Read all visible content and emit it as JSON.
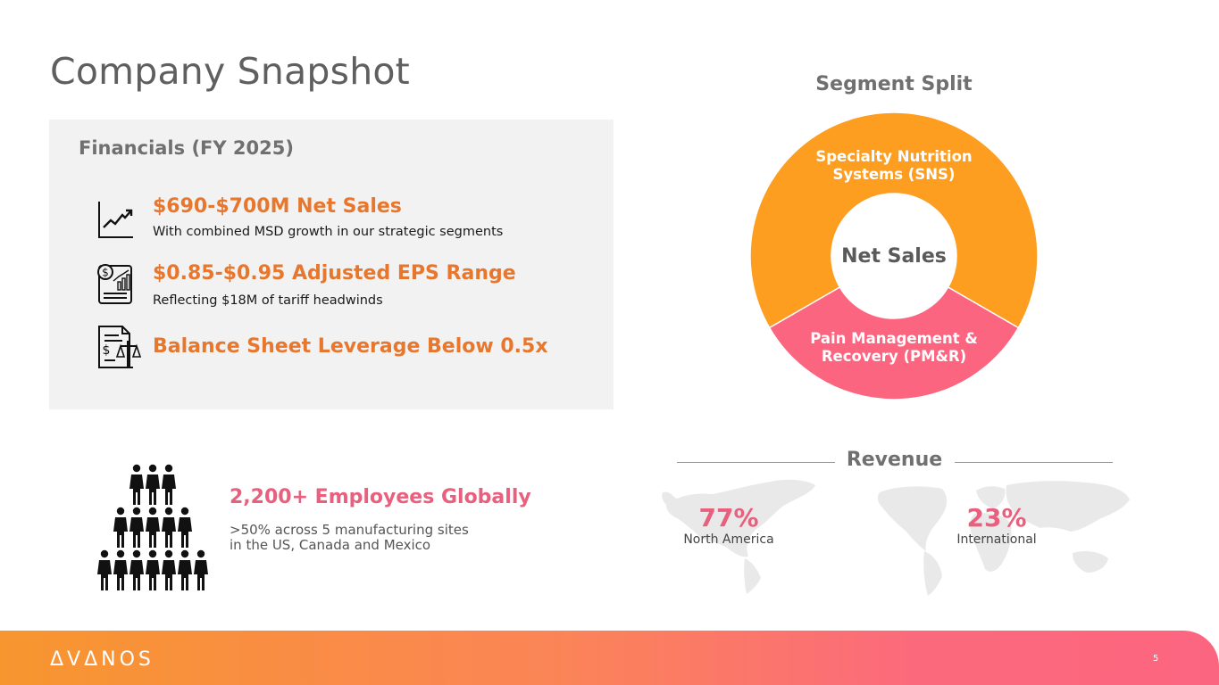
{
  "page": {
    "title": "Company Snapshot",
    "page_number": "5",
    "logo_text": "ΔVΔNOS"
  },
  "financials": {
    "heading": "Financials (FY 2025)",
    "items": [
      {
        "icon": "growth-chart-icon",
        "headline": "$690-$700M Net Sales",
        "sub": "With combined MSD growth in our strategic segments"
      },
      {
        "icon": "financial-report-icon",
        "headline": "$0.85-$0.95 Adjusted EPS Range",
        "sub": "Reflecting $18M of tariff headwinds"
      },
      {
        "icon": "balance-sheet-scale-icon",
        "headline": "Balance Sheet Leverage Below 0.5x",
        "sub": ""
      }
    ]
  },
  "segment": {
    "title": "Segment Split",
    "center_label": "Net Sales",
    "seg1_line1": "Specialty Nutrition",
    "seg1_line2": "Systems (SNS)",
    "seg2_line1": "Pain Management &",
    "seg2_line2": "Recovery (PM&R)",
    "colors": {
      "sns": "#fd9e21",
      "pmr": "#fc6580"
    }
  },
  "employees": {
    "icon": "people-group-icon",
    "headline": "2,200+ Employees Globally",
    "line1": ">50% across 5 manufacturing sites",
    "line2": "in the US, Canada and Mexico"
  },
  "revenue": {
    "title": "Revenue",
    "na_pct": "77%",
    "na_label": "North America",
    "intl_pct": "23%",
    "intl_label": "International"
  },
  "colors": {
    "orange": "#e8772e",
    "pink": "#e8607d",
    "gray_text": "#707070",
    "panel_bg": "#f2f2f2"
  }
}
